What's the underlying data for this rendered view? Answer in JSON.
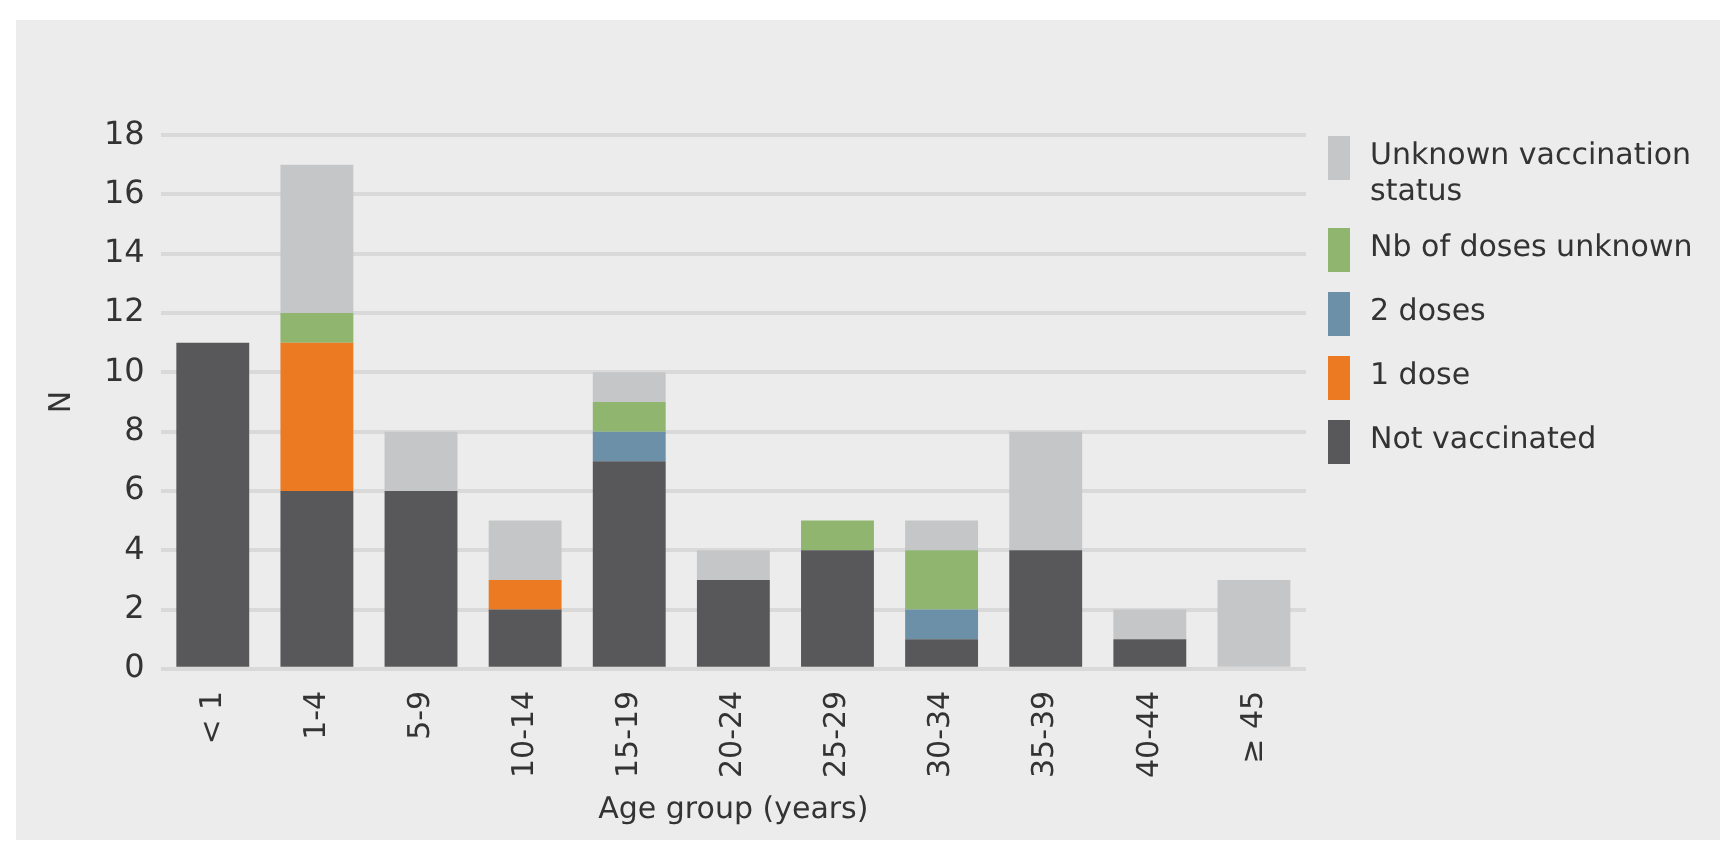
{
  "chart_data": {
    "type": "bar",
    "stacked": true,
    "xlabel": "Age group (years)",
    "ylabel": "N",
    "categories": [
      "< 1",
      "1-4",
      "5-9",
      "10-14",
      "15-19",
      "20-24",
      "25-29",
      "30-34",
      "35-39",
      "40-44",
      "≥ 45"
    ],
    "series": [
      {
        "name": "Not vaccinated",
        "color": "#58585a",
        "values": [
          11,
          6,
          6,
          2,
          7,
          3,
          4,
          1,
          4,
          1,
          0
        ]
      },
      {
        "name": "1 dose",
        "color": "#ec7a23",
        "values": [
          0,
          5,
          0,
          1,
          0,
          0,
          0,
          0,
          0,
          0,
          0
        ]
      },
      {
        "name": "2 doses",
        "color": "#6b90a8",
        "values": [
          0,
          0,
          0,
          0,
          1,
          0,
          0,
          1,
          0,
          0,
          0
        ]
      },
      {
        "name": "Nb of doses unknown",
        "color": "#8fb56f",
        "values": [
          0,
          1,
          0,
          0,
          1,
          0,
          1,
          2,
          0,
          0,
          0
        ]
      },
      {
        "name": "Unknown vaccination status",
        "color": "#c5c6c8",
        "values": [
          0,
          5,
          2,
          2,
          1,
          1,
          0,
          1,
          4,
          1,
          3
        ]
      }
    ],
    "ylim": [
      0,
      18
    ],
    "yticks": [
      0,
      2,
      4,
      6,
      8,
      10,
      12,
      14,
      16,
      18
    ],
    "grid": "y",
    "legend": "right"
  }
}
